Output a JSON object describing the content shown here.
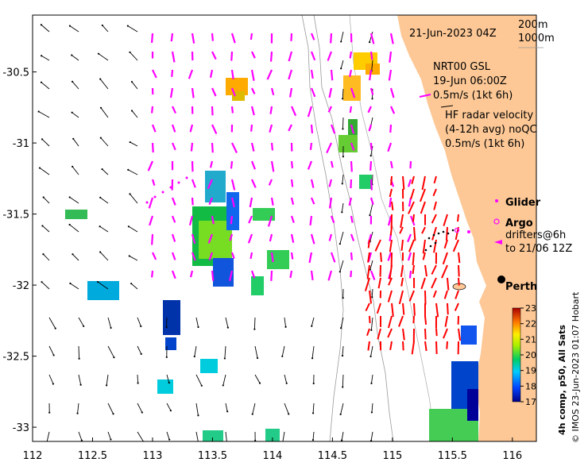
{
  "map": {
    "timestamp": "21-Jun-2023 04Z",
    "depth_contours": [
      "200m",
      "1000m"
    ],
    "gsl_block": [
      "NRT00 GSL",
      "19-Jun 06:00Z",
      "0.5m/s (1kt 6h)"
    ],
    "hf_block": [
      "HF radar velocity",
      "(4-12h avg) noQC",
      "0.5m/s (1kt 6h)"
    ],
    "glider_label": "Glider",
    "argo_label": "Argo",
    "drifters_label": [
      "drifters@6h",
      "to 21/06 12Z"
    ],
    "city": "Perth",
    "colorbar": {
      "title": "4h comp, p50, All Sats",
      "ticks": [
        "23",
        "22",
        "21",
        "20",
        "19",
        "18",
        "17"
      ],
      "min": 17,
      "max": 23
    },
    "credit": "© IMOS 23-Jun-2023 01:07 Hobart",
    "x_axis": {
      "ticks": [
        "112",
        "112.5",
        "113",
        "113.5",
        "114",
        "114.5",
        "115",
        "115.5",
        "116"
      ],
      "range": [
        112,
        116.2
      ]
    },
    "y_axis": {
      "ticks": [
        "-30.5",
        "-31",
        "-31.5",
        "-32",
        "-32.5",
        "-33"
      ],
      "range": [
        -33.1,
        -30.1
      ]
    },
    "colors": {
      "land": "#fdc896",
      "gsl_vectors": "#ff00ff",
      "hf_vectors": "#ff0000",
      "background_vectors": "#000000"
    }
  }
}
